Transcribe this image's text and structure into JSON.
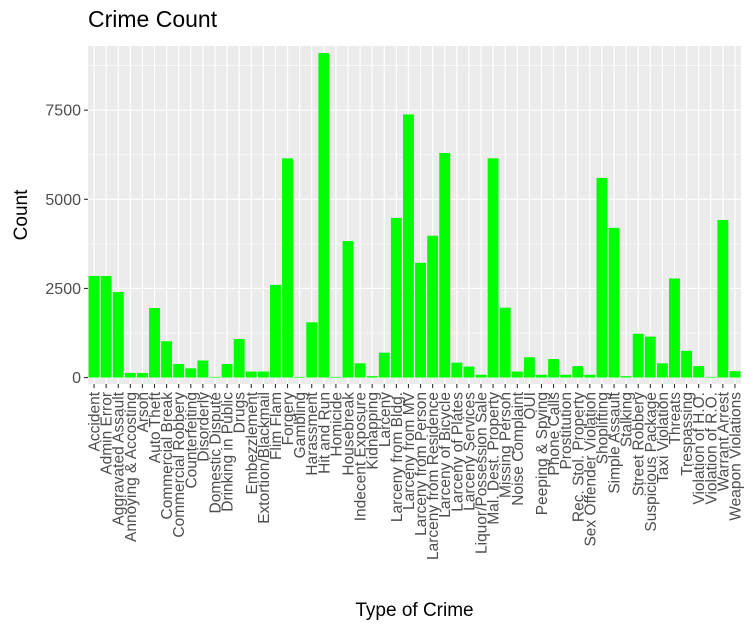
{
  "chart_data": {
    "type": "bar",
    "title": "Crime Count",
    "xlabel": "Type of Crime",
    "ylabel": "Count",
    "ylim": [
      -180,
      9300
    ],
    "yticks": [
      0,
      2500,
      5000,
      7500
    ],
    "ytick_labels": [
      "0",
      "2500",
      "5000",
      "7500"
    ],
    "grid": true,
    "bar_color": "#00ff00",
    "panel_color": "#ebebeb",
    "categories": [
      "Accident",
      "Admin Error",
      "Aggravated Assault",
      "Annoying & Accosting",
      "Arson",
      "Auto Theft",
      "Commercial Break",
      "Commercial Robbery",
      "Counterfeiting",
      "Disorderly",
      "Domestic Dispute",
      "Drinking in Public",
      "Drugs",
      "Embezzlement",
      "Extortion/Blackmail",
      "Flim Flam",
      "Forgery",
      "Gambling",
      "Harassment",
      "Hit and Run",
      "Homicide",
      "Housebreak",
      "Indecent Exposure",
      "Kidnapping",
      "Larceny",
      "Larceny from Bldg.",
      "Larceny from MV",
      "Larceny from Person",
      "Larceny from Residence",
      "Larceny of Bicycle",
      "Larceny of Plates",
      "Larceny Services",
      "Liquor/Possession Sale",
      "Mal. Dest. Property",
      "Missing Person",
      "Noise Complaint",
      "OUI",
      "Peeping & Spying",
      "Phone Calls",
      "Prostitution",
      "Rec. Stol. Property",
      "Sex Offender Violation",
      "Shoplifting",
      "Simple Assault",
      "Stalking",
      "Street Robbery",
      "Suspicious Package",
      "Taxi Violation",
      "Threats",
      "Trespassing",
      "Violation of H.O.",
      "Violation of R.O.",
      "Warrant Arrest",
      "Weapon Violations"
    ],
    "values": [
      2850,
      2850,
      2400,
      130,
      130,
      1950,
      1020,
      380,
      260,
      480,
      20,
      380,
      1080,
      170,
      170,
      2600,
      6150,
      20,
      1550,
      9100,
      20,
      3830,
      400,
      40,
      700,
      4480,
      7380,
      3220,
      3980,
      6300,
      420,
      310,
      80,
      6150,
      1960,
      170,
      570,
      80,
      520,
      80,
      320,
      80,
      5600,
      4200,
      40,
      1230,
      1150,
      400,
      2780,
      750,
      320,
      20,
      4420,
      180
    ]
  }
}
